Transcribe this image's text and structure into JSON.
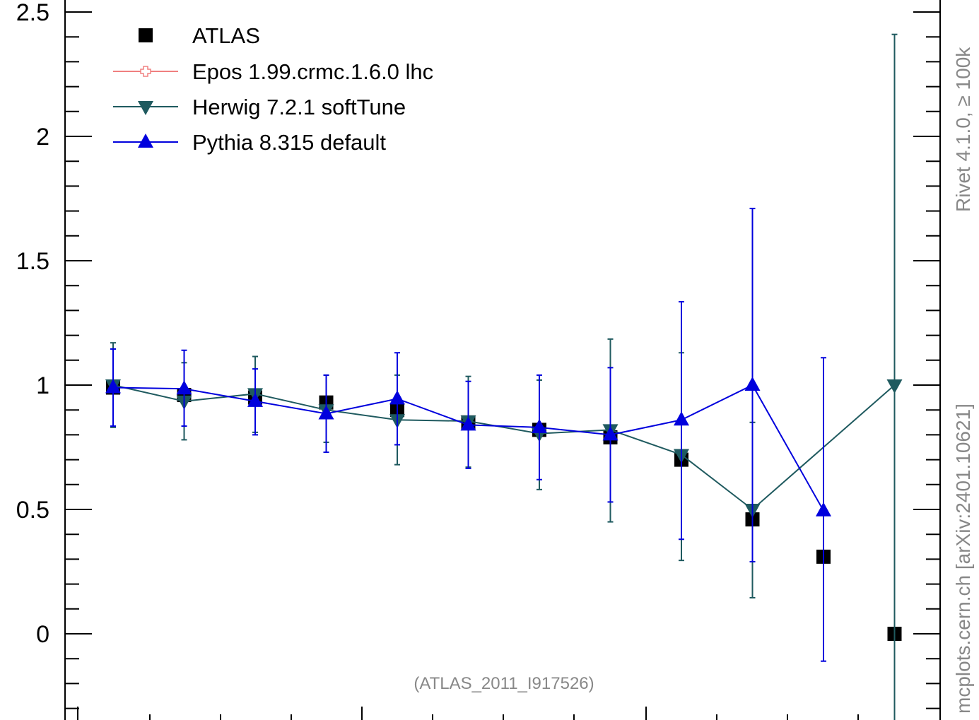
{
  "chart_data": {
    "type": "scatter",
    "ylim": [
      -0.3,
      2.55
    ],
    "y_tick_labels": [
      {
        "value": 2.5,
        "label": "2.5"
      },
      {
        "value": 2,
        "label": "2"
      },
      {
        "value": 1.5,
        "label": "1.5"
      },
      {
        "value": 1,
        "label": "1"
      },
      {
        "value": 0.5,
        "label": "0.5"
      },
      {
        "value": 0,
        "label": "0"
      }
    ],
    "annotation": "(ATLAS_2011_I917526)",
    "side_label": "mcplots.cern.ch [arXiv:2401.10621]",
    "side_label_top": "Rivet 4.1.0, ≥ 100k",
    "series": [
      {
        "name": "ATLAS",
        "marker": "square",
        "color": "#000000",
        "line": false,
        "values": [
          0.99,
          0.96,
          0.95,
          0.93,
          0.9,
          0.85,
          0.82,
          0.79,
          0.7,
          0.46,
          0.31,
          0.0
        ]
      },
      {
        "name": "Epos 1.99.crmc.1.6.0 lhc",
        "marker": "cross",
        "color": "#f08080",
        "line": true,
        "values": []
      },
      {
        "name": "Herwig 7.2.1 softTune",
        "marker": "triangle-down",
        "color": "#1f5a5f",
        "line": true,
        "values": [
          1.0,
          0.935,
          0.965,
          0.9,
          0.86,
          0.855,
          0.805,
          0.82,
          0.72,
          0.5,
          0.75,
          1.0
        ],
        "err_up": [
          1.17,
          1.09,
          1.115,
          1.04,
          1.04,
          1.035,
          1.02,
          1.185,
          1.13,
          0.85,
          null,
          2.41
        ],
        "err_down": [
          0.83,
          0.78,
          0.81,
          0.77,
          0.68,
          0.67,
          0.58,
          0.45,
          0.295,
          0.145,
          null,
          -0.35
        ],
        "draw_marker": [
          true,
          true,
          true,
          true,
          true,
          true,
          true,
          true,
          true,
          true,
          false,
          true
        ]
      },
      {
        "name": "Pythia 8.315 default",
        "marker": "triangle-up",
        "color": "#0000dd",
        "line": true,
        "values": [
          0.99,
          0.985,
          0.935,
          0.885,
          0.945,
          0.84,
          0.83,
          0.8,
          0.86,
          1.0,
          0.495
        ],
        "err_up": [
          1.145,
          1.14,
          1.065,
          1.04,
          1.13,
          1.015,
          1.04,
          1.07,
          1.335,
          1.71,
          1.11
        ],
        "err_down": [
          0.835,
          0.835,
          0.8,
          0.73,
          0.76,
          0.665,
          0.62,
          0.53,
          0.38,
          0.29,
          -0.11
        ]
      }
    ]
  }
}
